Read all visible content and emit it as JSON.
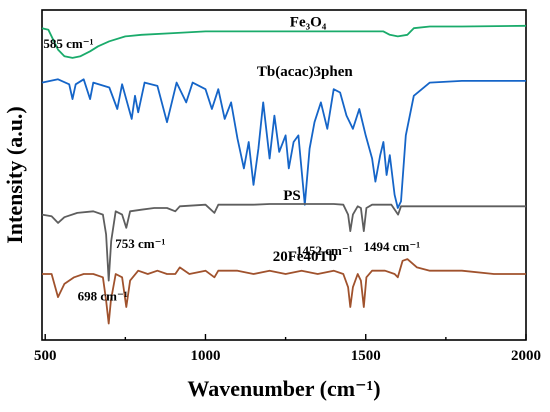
{
  "chart_data": {
    "type": "line",
    "title": "",
    "xlabel": "Wavenumber (cm⁻¹)",
    "ylabel": "Intensity (a.u.)",
    "xlim": [
      490,
      2000
    ],
    "x_ticks": [
      "500",
      "1000",
      "1500",
      "2000"
    ],
    "y_ticks_shown": false,
    "grid": false,
    "series": [
      {
        "name": "Fe₃O₄",
        "color": "#1aab6b",
        "points": [
          [
            490,
            0.945
          ],
          [
            510,
            0.94
          ],
          [
            540,
            0.88
          ],
          [
            560,
            0.86
          ],
          [
            585,
            0.855
          ],
          [
            610,
            0.86
          ],
          [
            640,
            0.875
          ],
          [
            665,
            0.89
          ],
          [
            700,
            0.905
          ],
          [
            750,
            0.92
          ],
          [
            800,
            0.925
          ],
          [
            900,
            0.93
          ],
          [
            1000,
            0.935
          ],
          [
            1100,
            0.935
          ],
          [
            1200,
            0.935
          ],
          [
            1300,
            0.935
          ],
          [
            1400,
            0.935
          ],
          [
            1500,
            0.935
          ],
          [
            1555,
            0.935
          ],
          [
            1575,
            0.925
          ],
          [
            1600,
            0.92
          ],
          [
            1630,
            0.925
          ],
          [
            1650,
            0.945
          ],
          [
            1700,
            0.95
          ],
          [
            1800,
            0.95
          ],
          [
            2000,
            0.952
          ]
        ]
      },
      {
        "name": "Tb(acac)3phen",
        "color": "#1565c8",
        "points": [
          [
            490,
            0.78
          ],
          [
            540,
            0.79
          ],
          [
            575,
            0.775
          ],
          [
            585,
            0.73
          ],
          [
            595,
            0.775
          ],
          [
            620,
            0.79
          ],
          [
            640,
            0.73
          ],
          [
            650,
            0.78
          ],
          [
            700,
            0.765
          ],
          [
            725,
            0.7
          ],
          [
            740,
            0.775
          ],
          [
            770,
            0.67
          ],
          [
            780,
            0.74
          ],
          [
            790,
            0.69
          ],
          [
            810,
            0.78
          ],
          [
            850,
            0.77
          ],
          [
            880,
            0.66
          ],
          [
            895,
            0.72
          ],
          [
            910,
            0.78
          ],
          [
            940,
            0.72
          ],
          [
            960,
            0.78
          ],
          [
            1000,
            0.76
          ],
          [
            1020,
            0.7
          ],
          [
            1040,
            0.76
          ],
          [
            1060,
            0.67
          ],
          [
            1080,
            0.72
          ],
          [
            1100,
            0.61
          ],
          [
            1120,
            0.52
          ],
          [
            1135,
            0.6
          ],
          [
            1150,
            0.47
          ],
          [
            1165,
            0.58
          ],
          [
            1180,
            0.72
          ],
          [
            1200,
            0.55
          ],
          [
            1215,
            0.68
          ],
          [
            1230,
            0.57
          ],
          [
            1250,
            0.62
          ],
          [
            1260,
            0.52
          ],
          [
            1275,
            0.6
          ],
          [
            1290,
            0.62
          ],
          [
            1310,
            0.41
          ],
          [
            1325,
            0.58
          ],
          [
            1340,
            0.66
          ],
          [
            1360,
            0.72
          ],
          [
            1380,
            0.64
          ],
          [
            1400,
            0.76
          ],
          [
            1420,
            0.75
          ],
          [
            1440,
            0.68
          ],
          [
            1460,
            0.64
          ],
          [
            1480,
            0.7
          ],
          [
            1500,
            0.62
          ],
          [
            1520,
            0.55
          ],
          [
            1530,
            0.48
          ],
          [
            1545,
            0.56
          ],
          [
            1555,
            0.6
          ],
          [
            1565,
            0.5
          ],
          [
            1575,
            0.56
          ],
          [
            1590,
            0.44
          ],
          [
            1600,
            0.4
          ],
          [
            1610,
            0.42
          ],
          [
            1625,
            0.62
          ],
          [
            1650,
            0.74
          ],
          [
            1700,
            0.78
          ],
          [
            1800,
            0.785
          ],
          [
            2000,
            0.785
          ]
        ]
      },
      {
        "name": "PS",
        "color": "#5e5e5e",
        "points": [
          [
            490,
            0.38
          ],
          [
            520,
            0.375
          ],
          [
            540,
            0.355
          ],
          [
            560,
            0.372
          ],
          [
            600,
            0.385
          ],
          [
            650,
            0.39
          ],
          [
            680,
            0.38
          ],
          [
            690,
            0.32
          ],
          [
            698,
            0.18
          ],
          [
            706,
            0.3
          ],
          [
            720,
            0.39
          ],
          [
            740,
            0.38
          ],
          [
            753,
            0.34
          ],
          [
            765,
            0.39
          ],
          [
            800,
            0.395
          ],
          [
            840,
            0.4
          ],
          [
            880,
            0.4
          ],
          [
            906,
            0.39
          ],
          [
            920,
            0.405
          ],
          [
            1000,
            0.41
          ],
          [
            1028,
            0.385
          ],
          [
            1040,
            0.41
          ],
          [
            1100,
            0.41
          ],
          [
            1150,
            0.41
          ],
          [
            1200,
            0.412
          ],
          [
            1250,
            0.412
          ],
          [
            1300,
            0.412
          ],
          [
            1350,
            0.412
          ],
          [
            1400,
            0.412
          ],
          [
            1430,
            0.41
          ],
          [
            1445,
            0.38
          ],
          [
            1452,
            0.33
          ],
          [
            1460,
            0.38
          ],
          [
            1475,
            0.405
          ],
          [
            1485,
            0.4
          ],
          [
            1494,
            0.33
          ],
          [
            1502,
            0.4
          ],
          [
            1520,
            0.41
          ],
          [
            1580,
            0.41
          ],
          [
            1601,
            0.38
          ],
          [
            1610,
            0.405
          ],
          [
            1650,
            0.405
          ],
          [
            1700,
            0.405
          ],
          [
            1800,
            0.405
          ],
          [
            2000,
            0.405
          ]
        ]
      },
      {
        "name": "20Fe40Tb",
        "color": "#a0522d",
        "points": [
          [
            490,
            0.2
          ],
          [
            520,
            0.2
          ],
          [
            540,
            0.13
          ],
          [
            560,
            0.17
          ],
          [
            590,
            0.19
          ],
          [
            620,
            0.2
          ],
          [
            650,
            0.2
          ],
          [
            680,
            0.19
          ],
          [
            690,
            0.12
          ],
          [
            698,
            0.05
          ],
          [
            705,
            0.12
          ],
          [
            720,
            0.2
          ],
          [
            740,
            0.19
          ],
          [
            753,
            0.1
          ],
          [
            765,
            0.18
          ],
          [
            790,
            0.21
          ],
          [
            820,
            0.2
          ],
          [
            850,
            0.21
          ],
          [
            880,
            0.2
          ],
          [
            906,
            0.2
          ],
          [
            920,
            0.22
          ],
          [
            950,
            0.2
          ],
          [
            1000,
            0.21
          ],
          [
            1028,
            0.19
          ],
          [
            1040,
            0.21
          ],
          [
            1100,
            0.21
          ],
          [
            1150,
            0.2
          ],
          [
            1200,
            0.21
          ],
          [
            1250,
            0.2
          ],
          [
            1300,
            0.21
          ],
          [
            1350,
            0.2
          ],
          [
            1400,
            0.21
          ],
          [
            1430,
            0.2
          ],
          [
            1445,
            0.16
          ],
          [
            1452,
            0.1
          ],
          [
            1460,
            0.16
          ],
          [
            1475,
            0.2
          ],
          [
            1485,
            0.18
          ],
          [
            1494,
            0.1
          ],
          [
            1502,
            0.19
          ],
          [
            1520,
            0.21
          ],
          [
            1560,
            0.21
          ],
          [
            1590,
            0.2
          ],
          [
            1600,
            0.19
          ],
          [
            1615,
            0.24
          ],
          [
            1630,
            0.245
          ],
          [
            1660,
            0.22
          ],
          [
            1700,
            0.21
          ],
          [
            1800,
            0.21
          ],
          [
            1900,
            0.2
          ],
          [
            2000,
            0.2
          ]
        ]
      }
    ],
    "annotations": [
      {
        "text": "585 cm⁻¹",
        "x": 585,
        "y": 0.855,
        "anchor": "above"
      },
      {
        "text": "698 cm⁻¹",
        "x": 698,
        "y": 0.18,
        "anchor": "below"
      },
      {
        "text": "753 cm⁻¹",
        "x": 753,
        "y": 0.34,
        "anchor": "below"
      },
      {
        "text": "1452 cm⁻¹",
        "x": 1452,
        "y": 0.33,
        "anchor": "below"
      },
      {
        "text": "1494 cm⁻¹",
        "x": 1494,
        "y": 0.33,
        "anchor": "below"
      }
    ],
    "series_labels": [
      {
        "text": "Fe₃O₄",
        "x": 1320,
        "y": 0.95
      },
      {
        "text": "Tb(acac)3phen",
        "x": 1310,
        "y": 0.8
      },
      {
        "text": "PS",
        "x": 1270,
        "y": 0.425
      },
      {
        "text": "20Fe40Tb",
        "x": 1310,
        "y": 0.24
      }
    ]
  }
}
